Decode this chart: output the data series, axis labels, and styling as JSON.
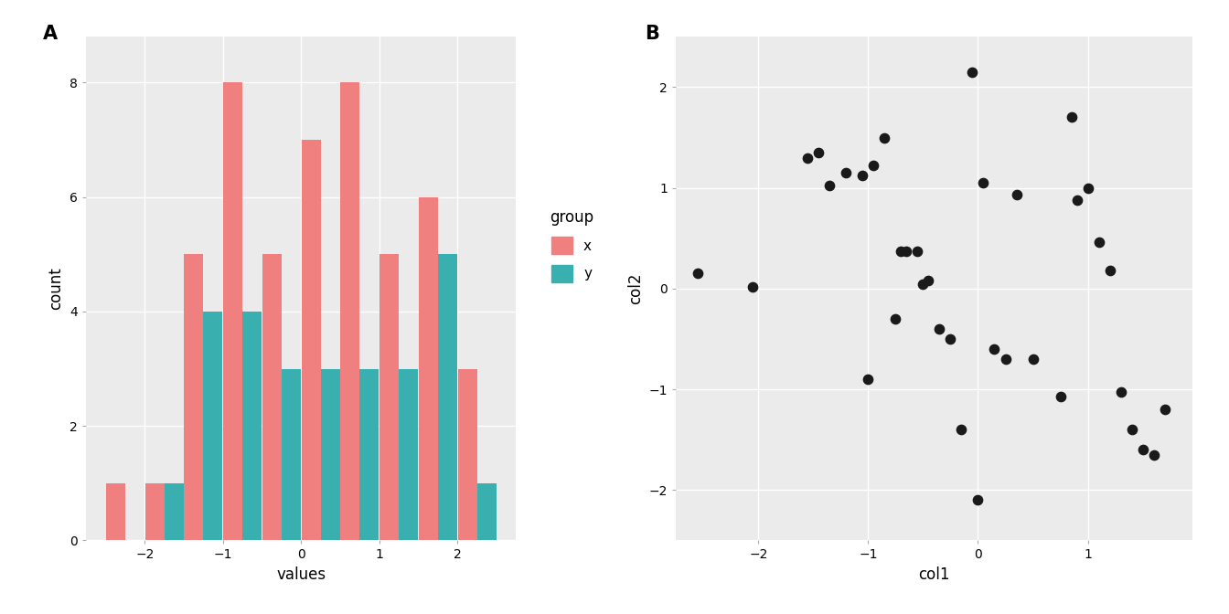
{
  "bg_color": "#ebebeb",
  "grid_color": "#ffffff",
  "hist_color_x": "#f08080",
  "hist_color_y": "#3aafaf",
  "scatter_color": "#1a1a1a",
  "label_fontsize": 12,
  "tick_fontsize": 10,
  "panel_label_fontsize": 15,
  "legend_title_fontsize": 12,
  "legend_fontsize": 11,
  "bins_edges": [
    -2.5,
    -2.0,
    -1.5,
    -1.0,
    -0.5,
    0.0,
    0.5,
    1.0,
    1.5,
    2.0,
    2.5
  ],
  "hist_x_counts": [
    1,
    1,
    5,
    8,
    5,
    7,
    8,
    5,
    6,
    3
  ],
  "hist_y_counts": [
    0,
    1,
    4,
    4,
    3,
    3,
    3,
    3,
    5,
    1
  ],
  "scatter_col1": [
    -2.55,
    -2.05,
    -1.55,
    -1.45,
    -1.35,
    -1.2,
    -1.05,
    -1.0,
    -0.95,
    -0.85,
    -0.75,
    -0.7,
    -0.65,
    -0.55,
    -0.5,
    -0.45,
    -0.35,
    -0.25,
    -0.15,
    -0.05,
    0.0,
    0.05,
    0.15,
    0.25,
    0.35,
    0.5,
    0.75,
    0.85,
    0.9,
    1.0,
    1.1,
    1.2,
    1.3,
    1.4,
    1.5,
    1.6,
    1.7
  ],
  "scatter_col2": [
    0.15,
    0.02,
    1.3,
    1.35,
    1.02,
    1.15,
    1.12,
    -0.9,
    1.22,
    1.5,
    -0.3,
    0.37,
    0.37,
    0.37,
    0.04,
    0.08,
    -0.4,
    -0.5,
    -1.4,
    2.15,
    -2.1,
    1.05,
    -0.6,
    -0.7,
    0.93,
    -0.7,
    -1.07,
    1.7,
    0.88,
    1.0,
    0.46,
    0.18,
    -1.03,
    -1.4,
    -1.6,
    -1.65,
    -1.2
  ],
  "hist_xlim": [
    -2.75,
    2.75
  ],
  "hist_ylim": [
    0,
    8.8
  ],
  "hist_xticks": [
    -2,
    -1,
    0,
    1,
    2
  ],
  "hist_yticks": [
    0,
    2,
    4,
    6,
    8
  ],
  "scatter_xlim": [
    -2.75,
    1.95
  ],
  "scatter_ylim": [
    -2.5,
    2.5
  ],
  "scatter_xticks": [
    -2,
    -1,
    0,
    1
  ],
  "scatter_yticks": [
    -2,
    -1,
    0,
    1,
    2
  ],
  "hist_xlabel": "values",
  "hist_ylabel": "count",
  "scatter_xlabel": "col1",
  "scatter_ylabel": "col2",
  "legend_title": "group",
  "legend_labels": [
    "x",
    "y"
  ],
  "panel_a_label": "A",
  "panel_b_label": "B"
}
